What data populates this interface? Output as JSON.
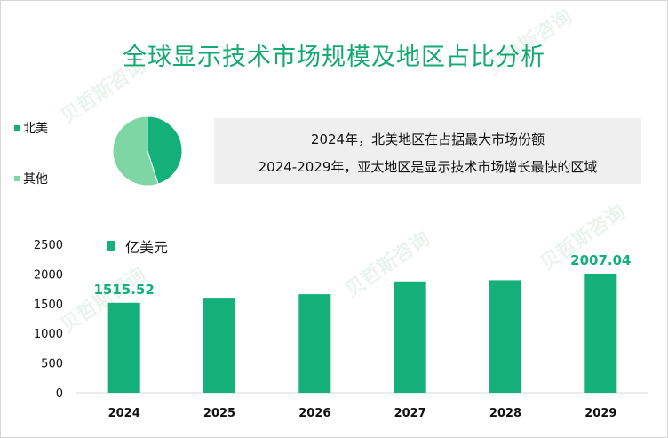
{
  "title": "全球显示技术市场规模及地区占比分析",
  "pie": {
    "legend": [
      {
        "label": "北美",
        "color": "#13b07a",
        "share": 0.45
      },
      {
        "label": "其他",
        "color": "#7ed6a5",
        "share": 0.55
      }
    ]
  },
  "notes": [
    "2024年，北美地区在占据最大市场份额",
    "2024-2029年，亚太地区是显示技术市场增长最快的区域"
  ],
  "watermark": "贝哲斯咨询",
  "chart_data": {
    "type": "bar",
    "series_name": "亿美元",
    "categories": [
      "2024",
      "2025",
      "2026",
      "2027",
      "2028",
      "2029"
    ],
    "values": [
      1515.52,
      1600,
      1660,
      1875,
      1895,
      2007.04
    ],
    "data_labels": {
      "2024": "1515.52",
      "2029": "2007.04"
    },
    "yticks": [
      "0",
      "500",
      "1000",
      "1500",
      "2000",
      "2500"
    ],
    "ylim": [
      0,
      2500
    ],
    "bar_color": "#13b07a",
    "label_color": "#13b07a"
  }
}
